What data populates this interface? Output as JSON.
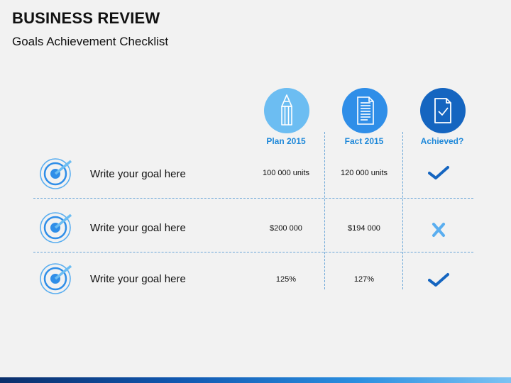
{
  "header": {
    "title": "BUSINESS REVIEW",
    "subtitle": "Goals Achievement Checklist"
  },
  "columns": [
    {
      "label": "Plan 2015",
      "icon": "pencil-icon",
      "color": "#6cbdf2"
    },
    {
      "label": "Fact 2015",
      "icon": "document-icon",
      "color": "#2f8ee8"
    },
    {
      "label": "Achieved?",
      "icon": "checked-document-icon",
      "color": "#1565c0"
    }
  ],
  "rows": [
    {
      "goal": "Write your goal here",
      "plan": "100 000 units",
      "fact": "120 000 units",
      "achieved": true
    },
    {
      "goal": "Write your goal here",
      "plan": "$200 000",
      "fact": "$194 000",
      "achieved": false
    },
    {
      "goal": "Write your goal here",
      "plan": "125%",
      "fact": "127%",
      "achieved": true
    }
  ],
  "colors": {
    "accent": "#1e88d9",
    "check": "#1565c0",
    "cross": "#5aaef0",
    "target": "#2f8ee8"
  }
}
